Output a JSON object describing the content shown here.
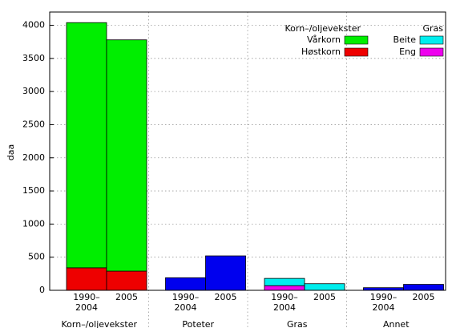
{
  "chart_data": {
    "type": "bar",
    "stacked": true,
    "ylabel": "daa",
    "groups": [
      "Korn–/oljevekster",
      "Poteter",
      "Gras",
      "Annet"
    ],
    "categories": [
      [
        "1990–",
        "2004"
      ],
      [
        "2005"
      ],
      [
        "1990–",
        "2004"
      ],
      [
        "2005"
      ],
      [
        "1990–",
        "2004"
      ],
      [
        "2005"
      ],
      [
        "1990–",
        "2004"
      ],
      [
        "2005"
      ]
    ],
    "series": [
      {
        "name": "Høstkorn",
        "color": "#ee0000",
        "group": 0,
        "values": [
          340,
          290,
          null,
          null,
          null,
          null,
          null,
          null
        ]
      },
      {
        "name": "Vårkorn",
        "color": "#00ee00",
        "group": 0,
        "values": [
          3700,
          3490,
          null,
          null,
          null,
          null,
          null,
          null
        ]
      },
      {
        "color": "#0000ee",
        "group": 1,
        "values": [
          null,
          null,
          190,
          520,
          null,
          null,
          40,
          90
        ]
      },
      {
        "name": "Eng",
        "color": "#ee00ee",
        "group": 2,
        "values": [
          null,
          null,
          null,
          null,
          70,
          0,
          null,
          null
        ]
      },
      {
        "name": "Beite",
        "color": "#00eeee",
        "group": 2,
        "values": [
          null,
          null,
          null,
          null,
          110,
          100,
          null,
          null
        ]
      }
    ],
    "ylim": [
      0,
      4200
    ],
    "yticks": [
      0,
      500,
      1000,
      1500,
      2000,
      2500,
      3000,
      3500,
      4000
    ],
    "grid": true
  }
}
